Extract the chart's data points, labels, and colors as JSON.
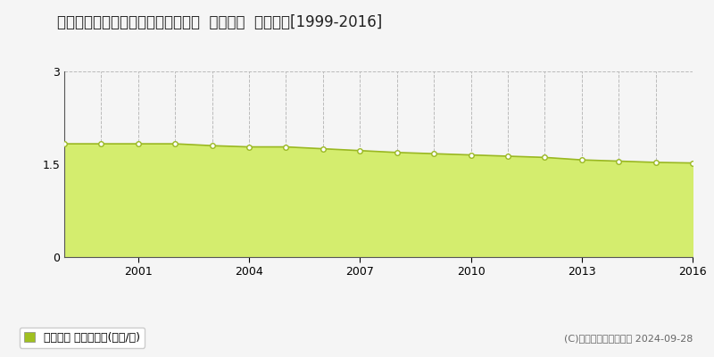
{
  "title": "北海道上川郡愛別町字南町７番１４  基準地価  地価推移[1999-2016]",
  "years": [
    1999,
    2000,
    2001,
    2002,
    2003,
    2004,
    2005,
    2006,
    2007,
    2008,
    2009,
    2010,
    2011,
    2012,
    2013,
    2014,
    2015,
    2016
  ],
  "values": [
    1.83,
    1.83,
    1.83,
    1.83,
    1.8,
    1.78,
    1.78,
    1.75,
    1.72,
    1.69,
    1.67,
    1.65,
    1.63,
    1.61,
    1.57,
    1.55,
    1.53,
    1.52
  ],
  "ylim": [
    0,
    3
  ],
  "yticks": [
    0,
    1.5,
    3
  ],
  "xticks": [
    2001,
    2004,
    2007,
    2010,
    2013,
    2016
  ],
  "fill_color": "#d4ed6e",
  "line_color": "#9ab822",
  "marker_face_color": "#ffffff",
  "marker_edge_color": "#9ab822",
  "vgrid_color": "#bbbbbb",
  "hgrid_color": "#bbbbbb",
  "background_color": "#f5f5f5",
  "plot_bg_color": "#f5f5f5",
  "legend_label": "基準地価 平均坪単価(万円/坪)",
  "legend_color": "#a0c020",
  "copyright_text": "(C)土地価格ドットコム 2024-09-28",
  "title_fontsize": 12,
  "axis_fontsize": 9,
  "legend_fontsize": 9,
  "copyright_fontsize": 8
}
